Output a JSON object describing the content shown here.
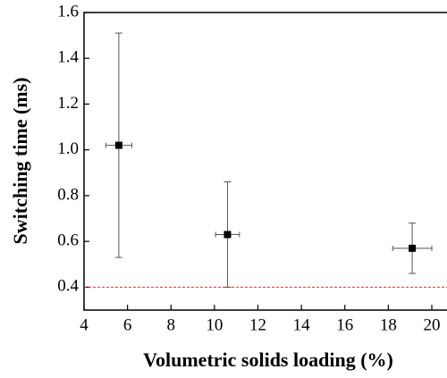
{
  "chart_data": {
    "type": "scatter",
    "x_label": "Volumetric solids loading (%)",
    "y_label": "Switching time (ms)",
    "series": [
      {
        "x": [
          5.6,
          10.6,
          19.1
        ],
        "values": [
          1.02,
          0.63,
          0.57
        ],
        "xerr": [
          0.6,
          0.55,
          0.9
        ],
        "yerr": [
          0.49,
          0.23,
          0.11
        ],
        "color": "#000000"
      }
    ],
    "hline": {
      "value": 0.4,
      "color": "#e03030"
    },
    "xlim": [
      4,
      20.7
    ],
    "ylim": [
      0.3,
      1.6
    ],
    "xticks": [
      4,
      6,
      8,
      10,
      12,
      14,
      16,
      18,
      20
    ],
    "yticks": [
      0.4,
      0.6,
      0.8,
      {
        "value": 1,
        "label": "1.0"
      },
      1.2,
      1.4,
      1.6
    ]
  }
}
